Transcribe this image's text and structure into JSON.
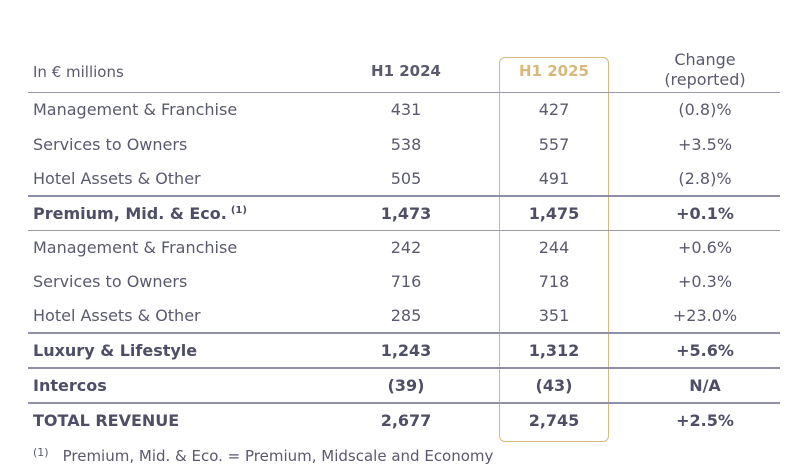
{
  "header": {
    "label": "In € millions",
    "col_2024": "H1 2024",
    "col_2025": "H1 2025",
    "change_line1": "Change",
    "change_line2": "(reported)"
  },
  "rows": [
    {
      "label": "Management & Franchise",
      "v2024": "431",
      "v2025": "427",
      "change": "(0.8)%"
    },
    {
      "label": "Services to Owners",
      "v2024": "538",
      "v2025": "557",
      "change": "+3.5%"
    },
    {
      "label": "Hotel Assets & Other",
      "v2024": "505",
      "v2025": "491",
      "change": "(2.8)%"
    },
    {
      "label": "Premium, Mid. & Eco.",
      "sup": "(1)",
      "v2024": "1,473",
      "v2025": "1,475",
      "change": "+0.1%"
    },
    {
      "label": "Management & Franchise",
      "v2024": "242",
      "v2025": "244",
      "change": "+0.6%"
    },
    {
      "label": "Services to Owners",
      "v2024": "716",
      "v2025": "718",
      "change": "+0.3%"
    },
    {
      "label": "Hotel Assets & Other",
      "v2024": "285",
      "v2025": "351",
      "change": "+23.0%"
    },
    {
      "label": "Luxury & Lifestyle",
      "v2024": "1,243",
      "v2025": "1,312",
      "change": "+5.6%"
    },
    {
      "label": "Intercos",
      "v2024": "(39)",
      "v2025": "(43)",
      "change": "N/A"
    },
    {
      "label": "TOTAL REVENUE",
      "v2024": "2,677",
      "v2025": "2,745",
      "change": "+2.5%"
    }
  ],
  "footnote": {
    "mark": "(1)",
    "text": "Premium, Mid. & Eco. = Premium, Midscale and Economy"
  },
  "colors": {
    "accent_gold": "#d9b87c",
    "text": "#5a5a6e"
  }
}
